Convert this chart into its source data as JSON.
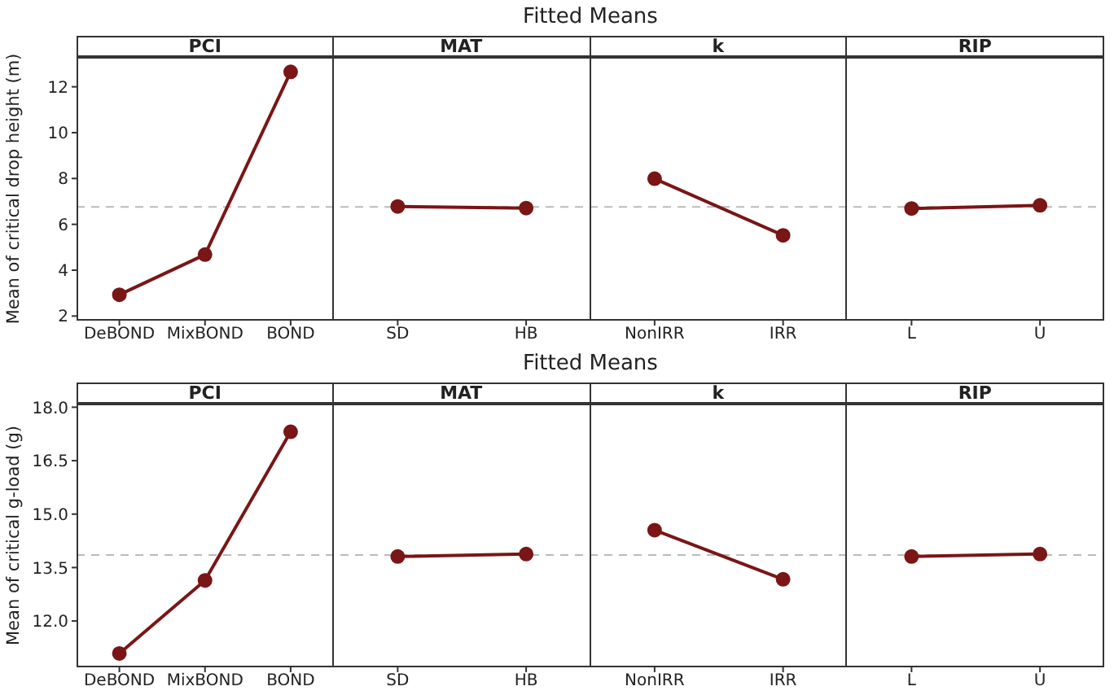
{
  "chart_data": [
    {
      "type": "line",
      "title": "Fitted Means",
      "ylabel": "Mean of critical drop height (m)",
      "annotations": [
        "PCI",
        "MAT",
        "k",
        "RIP"
      ],
      "categories": [
        "DeBOND",
        "MixBOND",
        "BOND",
        "SD",
        "HB",
        "NonIRR",
        "IRR",
        "L",
        "U"
      ],
      "series": [
        {
          "color": "#7a1616",
          "values": [
            2.93,
            4.68,
            12.65,
            null,
            null,
            null,
            null,
            null,
            null
          ]
        },
        {
          "color": "#7a1616",
          "values": [
            null,
            null,
            null,
            6.78,
            6.71,
            null,
            null,
            null,
            null
          ]
        },
        {
          "color": "#7a1616",
          "values": [
            null,
            null,
            null,
            null,
            null,
            7.99,
            5.52,
            null,
            null
          ]
        },
        {
          "color": "#7a1616",
          "values": [
            null,
            null,
            null,
            null,
            null,
            null,
            null,
            6.69,
            6.83
          ]
        }
      ],
      "marker": "circle",
      "ylim": [
        1.8,
        13.3
      ],
      "yticks": [
        2,
        4,
        6,
        8,
        10,
        12
      ],
      "ref_lines": [
        {
          "axis": "y",
          "value": 6.76,
          "color": "#bbbbbb",
          "line_style": "dashed"
        }
      ]
    },
    {
      "type": "line",
      "title": "Fitted Means",
      "ylabel": "Mean of critical g-load (g)",
      "annotations": [
        "PCI",
        "MAT",
        "k",
        "RIP"
      ],
      "categories": [
        "DeBOND",
        "MixBOND",
        "BOND",
        "SD",
        "HB",
        "NonIRR",
        "IRR",
        "L",
        "U"
      ],
      "series": [
        {
          "color": "#7a1616",
          "values": [
            11.09,
            13.14,
            17.31,
            null,
            null,
            null,
            null,
            null,
            null
          ]
        },
        {
          "color": "#7a1616",
          "values": [
            null,
            null,
            null,
            13.81,
            13.88,
            null,
            null,
            null,
            null
          ]
        },
        {
          "color": "#7a1616",
          "values": [
            null,
            null,
            null,
            null,
            null,
            14.55,
            13.17,
            null,
            null
          ]
        },
        {
          "color": "#7a1616",
          "values": [
            null,
            null,
            null,
            null,
            null,
            null,
            null,
            13.81,
            13.88
          ]
        }
      ],
      "marker": "circle",
      "ylim": [
        10.7,
        18.1
      ],
      "yticks": [
        {
          "value": 12,
          "label": "12.0"
        },
        {
          "value": 13.5,
          "label": "13.5"
        },
        {
          "value": 15,
          "label": "15.0"
        },
        {
          "value": 16.5,
          "label": "16.5"
        },
        {
          "value": 18,
          "label": "18.0"
        }
      ],
      "ref_lines": [
        {
          "axis": "y",
          "value": 13.85,
          "color": "#bbbbbb",
          "line_style": "dashed"
        }
      ]
    }
  ]
}
